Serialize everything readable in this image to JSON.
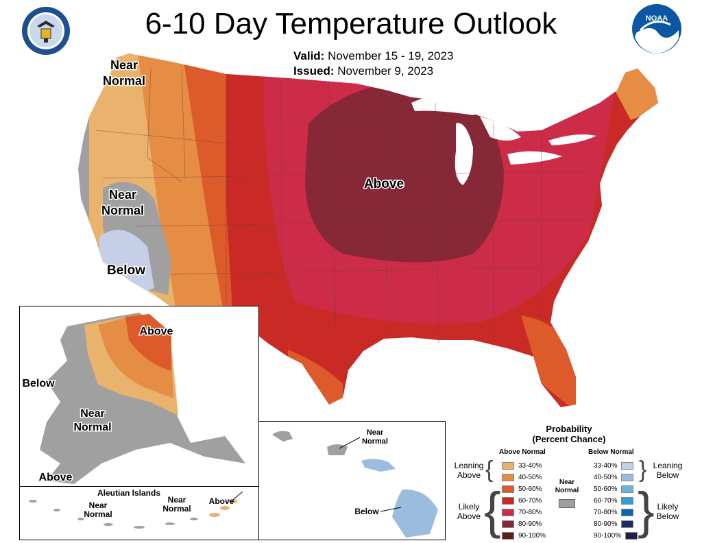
{
  "title": "6-10 Day Temperature Outlook",
  "valid": {
    "label": "Valid:",
    "value": "November 15 - 19, 2023"
  },
  "issued": {
    "label": "Issued:",
    "value": "November 9, 2023"
  },
  "logos": {
    "left": "doc-seal-icon",
    "right": "noaa-logo-icon"
  },
  "map_labels": {
    "conus_near_normal_nw": "Near\nNormal",
    "conus_near_normal_ca": "Near\nNormal",
    "conus_below": "Below",
    "conus_above": "Above",
    "alaska_above": "Above",
    "alaska_below": "Below",
    "alaska_near_normal": "Near\nNormal",
    "alaska_above_south": "Above",
    "aleutian_title": "Aleutian Islands",
    "aleutian_near_normal_1": "Near\nNormal",
    "aleutian_near_normal_2": "Near\nNormal",
    "aleutian_above": "Above",
    "hawaii_near_normal": "Near\nNormal",
    "hawaii_below": "Below"
  },
  "legend": {
    "title_line1": "Probability",
    "title_line2": "(Percent Chance)",
    "above_header": "Above Normal",
    "below_header": "Below Normal",
    "near_normal_label": "Near\nNormal",
    "near_normal_color": "#a0a0a0",
    "leaning_above": "Leaning\nAbove",
    "likely_above": "Likely\nAbove",
    "leaning_below": "Leaning\nBelow",
    "likely_below": "Likely\nBelow",
    "above": [
      {
        "range": "33-40%",
        "color": "#e9b36d"
      },
      {
        "range": "40-50%",
        "color": "#e58d45"
      },
      {
        "range": "50-60%",
        "color": "#dd5a2b"
      },
      {
        "range": "60-70%",
        "color": "#ca2a26"
      },
      {
        "range": "70-80%",
        "color": "#cc2c48"
      },
      {
        "range": "80-90%",
        "color": "#872836"
      },
      {
        "range": "90-100%",
        "color": "#5a1f17"
      }
    ],
    "below": [
      {
        "range": "33-40%",
        "color": "#c5cfe7"
      },
      {
        "range": "40-50%",
        "color": "#9cbcde"
      },
      {
        "range": "50-60%",
        "color": "#69b3df"
      },
      {
        "range": "60-70%",
        "color": "#2f9fd8"
      },
      {
        "range": "70-80%",
        "color": "#0b68b0"
      },
      {
        "range": "80-90%",
        "color": "#1b2a6b"
      },
      {
        "range": "90-100%",
        "color": "#241b4e"
      }
    ]
  }
}
